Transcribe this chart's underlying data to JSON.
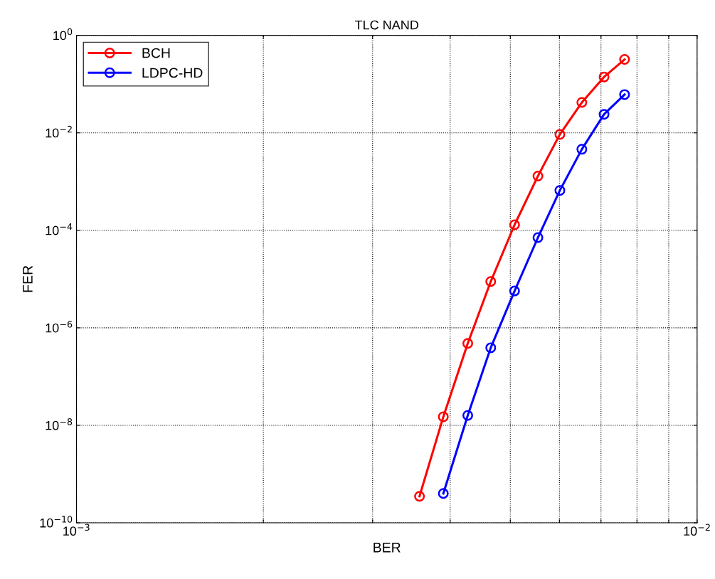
{
  "chart_data": {
    "type": "line",
    "title": "TLC NAND",
    "xlabel": "BER",
    "ylabel": "FER",
    "log": "xy",
    "grid": true,
    "legend": "top left",
    "marker": "circle",
    "line_style": "solid",
    "xlim": [
      0.001,
      0.01
    ],
    "ylim": [
      1e-10,
      1
    ],
    "xticks": [
      {
        "value": 0.001,
        "label": "10$^{−3}$"
      },
      {
        "value": 0.002,
        "label": null
      },
      {
        "value": 0.003,
        "label": null
      },
      {
        "value": 0.004,
        "label": null
      },
      {
        "value": 0.005,
        "label": null
      },
      {
        "value": 0.006,
        "label": null
      },
      {
        "value": 0.007,
        "label": null
      },
      {
        "value": 0.008,
        "label": null
      },
      {
        "value": 0.009,
        "label": null
      },
      {
        "value": 0.01,
        "label": "10$^{−2}$"
      }
    ],
    "yticks": [
      {
        "value": 1e-10,
        "label": "10$^{−10}$"
      },
      {
        "value": 1e-08,
        "label": "10$^{−8}$"
      },
      {
        "value": 1e-06,
        "label": "10$^{−6}$"
      },
      {
        "value": 0.0001,
        "label": "10$^{−4}$"
      },
      {
        "value": 0.01,
        "label": "10$^{−2}$"
      },
      {
        "value": 1,
        "label": "10$^{0}$"
      }
    ],
    "series": [
      {
        "name": "BCH",
        "color": "#ff0000",
        "x": [
          0.00357,
          0.0039,
          0.00427,
          0.00465,
          0.00508,
          0.00554,
          0.00601,
          0.00652,
          0.00708,
          0.00764
        ],
        "values": [
          3.5e-10,
          1.5e-08,
          4.8e-07,
          8.9e-06,
          0.00013,
          0.0013,
          0.0093,
          0.042,
          0.14,
          0.32
        ]
      },
      {
        "name": "LDPC-HD",
        "color": "#0000ff",
        "x": [
          0.0039,
          0.00427,
          0.00465,
          0.00508,
          0.00554,
          0.00601,
          0.00652,
          0.00708,
          0.00764
        ],
        "values": [
          4e-10,
          1.6e-08,
          3.9e-07,
          5.7e-06,
          7.1e-05,
          0.00066,
          0.0046,
          0.024,
          0.061
        ]
      }
    ]
  }
}
